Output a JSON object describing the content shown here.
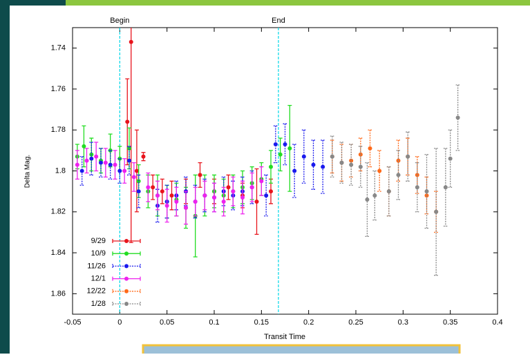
{
  "chart_data": {
    "type": "errorbar",
    "xlabel": "Transit Time",
    "ylabel": "Delta Mag.",
    "xlim": [
      -0.05,
      0.4
    ],
    "xticks": [
      -0.05,
      0,
      0.05,
      0.1,
      0.15,
      0.2,
      0.25,
      0.3,
      0.35,
      0.4
    ],
    "ylim": [
      1.87,
      1.73
    ],
    "yticks": [
      1.74,
      1.76,
      1.78,
      1.8,
      1.82,
      1.84,
      1.86
    ],
    "legend": "lower left",
    "annotations": [
      {
        "x": 0,
        "label": "Begin",
        "color": "#00d8e8"
      },
      {
        "x": 0.168,
        "label": "End",
        "color": "#00d8e8"
      }
    ],
    "series": [
      {
        "name": "9/29",
        "color": "#e8141c",
        "dashed": false,
        "x": [
          0.008,
          0.012,
          0.018,
          0.025,
          0.035,
          0.045,
          0.055,
          0.07,
          0.085,
          0.1,
          0.115,
          0.13,
          0.145,
          0.16
        ],
        "values": [
          1.776,
          1.737,
          1.8,
          1.793,
          1.808,
          1.81,
          1.812,
          1.81,
          1.802,
          1.81,
          1.808,
          1.812,
          1.815,
          1.81
        ],
        "errors": [
          0.021,
          0.098,
          0.02,
          0.002,
          0.006,
          0.006,
          0.007,
          0.006,
          0.006,
          0.006,
          0.006,
          0.006,
          0.016,
          0.006
        ]
      },
      {
        "name": "10/9",
        "color": "#22dd22",
        "dashed": false,
        "x": [
          -0.045,
          -0.038,
          -0.03,
          -0.02,
          -0.01,
          0,
          0.01,
          0.02,
          0.03,
          0.04,
          0.05,
          0.06,
          0.07,
          0.08,
          0.09,
          0.1,
          0.11,
          0.12,
          0.13,
          0.14,
          0.15,
          0.16,
          0.17,
          0.18
        ],
        "values": [
          1.793,
          1.788,
          1.792,
          1.795,
          1.79,
          1.794,
          1.789,
          1.805,
          1.81,
          1.812,
          1.815,
          1.814,
          1.818,
          1.822,
          1.812,
          1.81,
          1.812,
          1.81,
          1.808,
          1.806,
          1.804,
          1.798,
          1.792,
          1.789
        ],
        "errors": [
          0.006,
          0.01,
          0.008,
          0.006,
          0.008,
          0.006,
          0.01,
          0.008,
          0.008,
          0.01,
          0.008,
          0.008,
          0.01,
          0.02,
          0.01,
          0.008,
          0.008,
          0.008,
          0.008,
          0.008,
          0.008,
          0.008,
          0.008,
          0.021
        ]
      },
      {
        "name": "11/26",
        "color": "#1a1aee",
        "dashed": true,
        "x": [
          -0.04,
          -0.03,
          -0.02,
          -0.01,
          0,
          0.01,
          0.02,
          0.04,
          0.05,
          0.06,
          0.07,
          0.08,
          0.09,
          0.1,
          0.11,
          0.12,
          0.13,
          0.14,
          0.155,
          0.165,
          0.175,
          0.185,
          0.195,
          0.205,
          0.215
        ],
        "values": [
          1.8,
          1.794,
          1.796,
          1.797,
          1.8,
          1.795,
          1.81,
          1.817,
          1.815,
          1.812,
          1.81,
          1.815,
          1.812,
          1.813,
          1.81,
          1.812,
          1.81,
          1.808,
          1.812,
          1.787,
          1.787,
          1.8,
          1.793,
          1.797,
          1.798
        ],
        "errors": [
          0.007,
          0.008,
          0.007,
          0.007,
          0.006,
          0.007,
          0.008,
          0.008,
          0.008,
          0.007,
          0.007,
          0.008,
          0.008,
          0.007,
          0.007,
          0.007,
          0.007,
          0.008,
          0.01,
          0.009,
          0.01,
          0.013,
          0.013,
          0.012,
          0.013
        ]
      },
      {
        "name": "12/1",
        "color": "#ee22ee",
        "dashed": false,
        "x": [
          -0.045,
          -0.035,
          -0.025,
          -0.015,
          -0.005,
          0.005,
          0.015,
          0.03,
          0.04,
          0.05,
          0.06,
          0.07,
          0.08,
          0.09,
          0.1,
          0.11,
          0.12,
          0.13,
          0.14,
          0.15
        ],
        "values": [
          1.797,
          1.795,
          1.793,
          1.796,
          1.797,
          1.8,
          1.803,
          1.808,
          1.812,
          1.817,
          1.815,
          1.818,
          1.815,
          1.812,
          1.813,
          1.815,
          1.81,
          1.813,
          1.808,
          1.805
        ],
        "errors": [
          0.007,
          0.006,
          0.007,
          0.007,
          0.007,
          0.006,
          0.007,
          0.007,
          0.007,
          0.008,
          0.007,
          0.008,
          0.007,
          0.007,
          0.007,
          0.007,
          0.007,
          0.008,
          0.007,
          0.007
        ]
      },
      {
        "name": "12/22",
        "color": "#ff6a1a",
        "dashed": true,
        "x": [
          0.225,
          0.235,
          0.245,
          0.255,
          0.265,
          0.275,
          0.285,
          0.295,
          0.305,
          0.315,
          0.325,
          0.335
        ],
        "values": [
          1.793,
          1.796,
          1.795,
          1.792,
          1.789,
          1.8,
          1.81,
          1.795,
          1.793,
          1.802,
          1.812,
          1.82
        ],
        "errors": [
          0.008,
          0.009,
          0.008,
          0.008,
          0.009,
          0.01,
          0.012,
          0.01,
          0.009,
          0.009,
          0.009,
          0.01
        ]
      },
      {
        "name": "1/28",
        "color": "#888888",
        "dashed": true,
        "x": [
          0.225,
          0.235,
          0.245,
          0.255,
          0.262,
          0.27,
          0.285,
          0.295,
          0.305,
          0.315,
          0.325,
          0.335,
          0.345,
          0.35,
          0.358
        ],
        "values": [
          1.793,
          1.796,
          1.797,
          1.798,
          1.814,
          1.812,
          1.81,
          1.802,
          1.793,
          1.808,
          1.81,
          1.82,
          1.808,
          1.794,
          1.774
        ],
        "errors": [
          0.01,
          0.01,
          0.01,
          0.01,
          0.018,
          0.012,
          0.012,
          0.012,
          0.012,
          0.012,
          0.018,
          0.031,
          0.019,
          0.014,
          0.016
        ]
      }
    ]
  }
}
